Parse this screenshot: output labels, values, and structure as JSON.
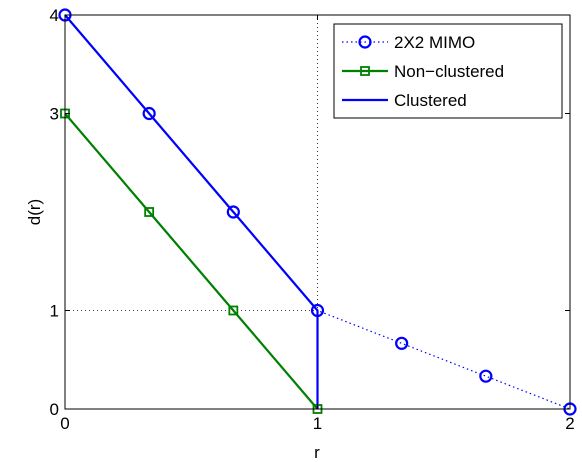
{
  "chart_data": {
    "type": "line",
    "title": "",
    "xlabel": "r",
    "ylabel": "d(r)",
    "xlim": [
      0,
      2
    ],
    "ylim": [
      0,
      4
    ],
    "xticks": [
      "0",
      "1",
      "2"
    ],
    "yticks": [
      "0",
      "1",
      "3",
      "4"
    ],
    "grid": false,
    "reference_lines": [
      {
        "orientation": "vertical",
        "value": 1,
        "style": "dotted",
        "range": [
          1,
          4
        ]
      },
      {
        "orientation": "horizontal",
        "value": 1,
        "style": "dotted",
        "range": [
          0,
          1
        ]
      }
    ],
    "legend_position": "top-right",
    "series": [
      {
        "name": "2X2 MIMO",
        "color": "#0000ff",
        "line_style": "dotted",
        "marker": "circle",
        "x": [
          0,
          0.3333,
          0.6667,
          1,
          1.3333,
          1.6667,
          2
        ],
        "y": [
          4,
          3,
          2,
          1,
          0.6667,
          0.3333,
          0
        ]
      },
      {
        "name": "Non−clustered",
        "color": "#008000",
        "line_style": "solid",
        "marker": "square",
        "x": [
          0,
          0.3333,
          0.6667,
          1
        ],
        "y": [
          3,
          2,
          1,
          0
        ]
      },
      {
        "name": "Clustered",
        "color": "#0000ff",
        "line_style": "solid",
        "marker": "none",
        "x": [
          0,
          0.3333,
          0.6667,
          1,
          1
        ],
        "y": [
          4,
          3,
          2,
          1,
          0
        ]
      }
    ]
  }
}
